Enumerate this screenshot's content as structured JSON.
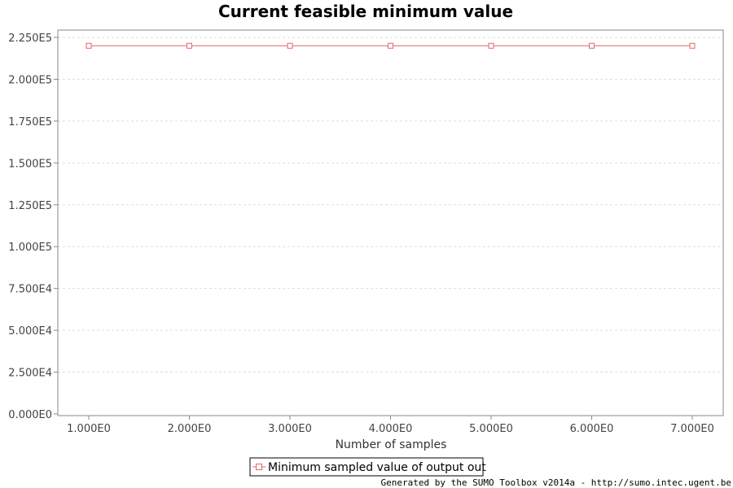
{
  "chart_data": {
    "type": "line",
    "title": "Current feasible minimum value",
    "xlabel": "Number of samples",
    "ylabel": "",
    "xlim": [
      0.7,
      7.3
    ],
    "ylim": [
      0,
      225000
    ],
    "x_ticks": [
      1,
      2,
      3,
      4,
      5,
      6,
      7
    ],
    "x_tick_labels": [
      "1.000E0",
      "2.000E0",
      "3.000E0",
      "4.000E0",
      "5.000E0",
      "6.000E0",
      "7.000E0"
    ],
    "y_ticks": [
      0,
      25000,
      50000,
      75000,
      100000,
      125000,
      150000,
      175000,
      200000,
      225000
    ],
    "y_tick_labels": [
      "0.000E0",
      "2.500E4",
      "5.000E4",
      "7.500E4",
      "1.000E5",
      "1.250E5",
      "1.500E5",
      "1.750E5",
      "2.000E5",
      "2.250E5"
    ],
    "grid": true,
    "legend_position": "bottom-center",
    "series": [
      {
        "name": "Minimum sampled value of output out",
        "color": "#e06666",
        "marker": "square",
        "x": [
          1,
          2,
          3,
          4,
          5,
          6,
          7
        ],
        "values": [
          220000,
          220000,
          220000,
          220000,
          220000,
          220000,
          220000
        ]
      }
    ]
  },
  "footer": "Generated by the SUMO Toolbox v2014a - http://sumo.intec.ugent.be",
  "colors": {
    "grid": "#dddddd",
    "frame": "#888888",
    "series": "#e06666"
  }
}
